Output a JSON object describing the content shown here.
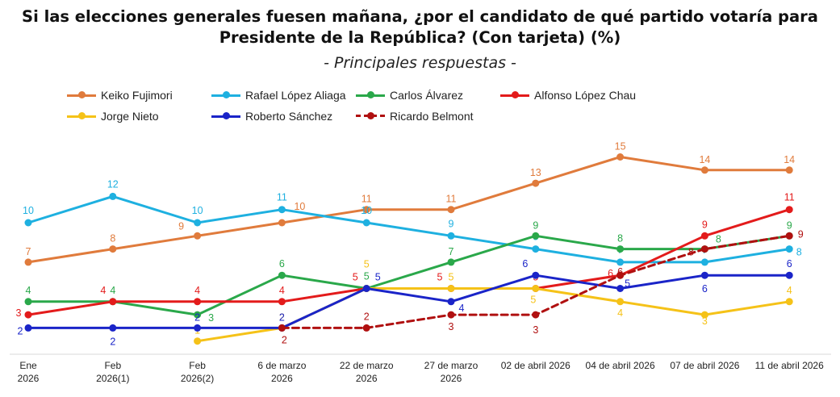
{
  "title_line1": "Si las elecciones generales fuesen mañana, ¿por el candidato de qué partido votaría para",
  "title_line2": "Presidente de la República? (Con tarjeta) (%)",
  "subtitle": "- Principales respuestas -",
  "colors": {
    "keiko": "#e07b3c",
    "rafael": "#1eb0e0",
    "carlos": "#2aa84a",
    "alfonso": "#e31b1b",
    "jorge": "#f5c218",
    "roberto": "#1a24c8",
    "ricardo": "#b01010",
    "axis": "#d9d9d9"
  },
  "chart_data": {
    "type": "line",
    "title": "Si las elecciones generales fuesen mañana, ¿por el candidato de qué partido votaría para Presidente de la República? (Con tarjeta) (%)",
    "subtitle": "- Principales respuestas -",
    "xlabel": "",
    "ylabel": "",
    "ylim": [
      0,
      17
    ],
    "grid": false,
    "legend_position": "top",
    "categories": [
      [
        "Ene",
        "2026"
      ],
      [
        "Feb",
        "2026(1)"
      ],
      [
        "Feb",
        "2026(2)"
      ],
      [
        "6 de marzo",
        "2026"
      ],
      [
        "22 de marzo",
        "2026"
      ],
      [
        "27 de marzo",
        "2026"
      ],
      [
        "02 de abril 2026"
      ],
      [
        "04 de abril 2026"
      ],
      [
        "07 de abril 2026"
      ],
      [
        "11 de abril 2026"
      ]
    ],
    "series": [
      {
        "name": "Keiko Fujimori",
        "key": "keiko",
        "dashed": false,
        "values": [
          7,
          8,
          9,
          10,
          11,
          11,
          13,
          15,
          14,
          14
        ]
      },
      {
        "name": "Rafael López Aliaga",
        "key": "rafael",
        "dashed": false,
        "values": [
          10,
          12,
          10,
          11,
          10,
          9,
          8,
          7,
          7,
          8
        ]
      },
      {
        "name": "Carlos Álvarez",
        "key": "carlos",
        "dashed": false,
        "values": [
          4,
          4,
          3,
          6,
          5,
          7,
          9,
          8,
          8,
          9
        ]
      },
      {
        "name": "Alfonso López Chau",
        "key": "alfonso",
        "dashed": false,
        "values": [
          3,
          4,
          4,
          4,
          5,
          5,
          5,
          6,
          9,
          11
        ]
      },
      {
        "name": "Jorge Nieto",
        "key": "jorge",
        "dashed": false,
        "values": [
          null,
          null,
          1,
          2,
          5,
          5,
          5,
          4,
          3,
          4
        ]
      },
      {
        "name": "Roberto Sánchez",
        "key": "roberto",
        "dashed": false,
        "values": [
          2,
          2,
          2,
          2,
          5,
          4,
          6,
          5,
          6,
          6
        ]
      },
      {
        "name": "Ricardo Belmont",
        "key": "ricardo",
        "dashed": true,
        "values": [
          null,
          null,
          null,
          2,
          2,
          3,
          3,
          6,
          8,
          9
        ]
      }
    ]
  }
}
